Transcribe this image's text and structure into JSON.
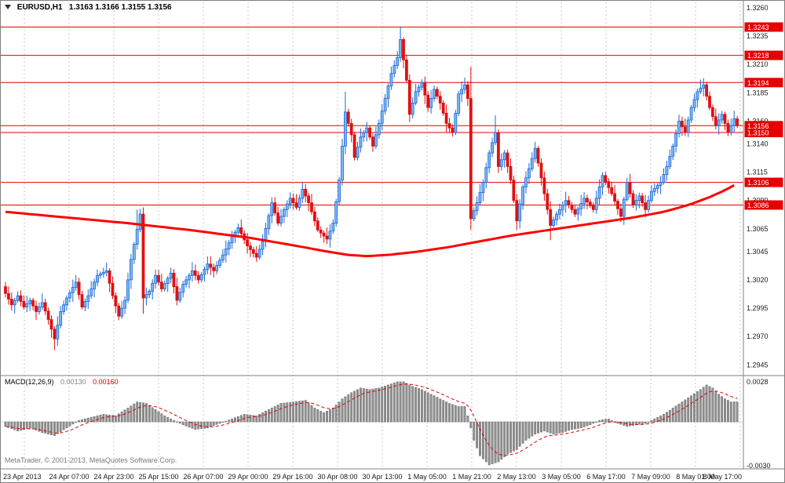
{
  "window": {
    "symbol_period": "EURUSD,H1",
    "ohlc_text": "1.3163 1.3166 1.3155 1.3156"
  },
  "watermark": "MetaTrader, © 2001-2013, MetaQuotes Software Corp.",
  "colors": {
    "background": "#ffffff",
    "border": "#808080",
    "grid": "#c9c9c9",
    "bull_stroke": "#1b66d6",
    "bull_fill": "#7db9ef",
    "bear": "#e01010",
    "ma": "#ff0000",
    "level": "#e60000",
    "tag_bg": "#e60000",
    "tag_text": "#ffffff",
    "macd_bar_fill": "#909090",
    "macd_bar_stroke": "#606060",
    "macd_signal": "#dd0000",
    "axis_text": "#1a1a1a"
  },
  "chart_data": {
    "type": "candlestick",
    "symbol": "EURUSD",
    "period": "H1",
    "last_ohlc": {
      "open": "1.3163",
      "high": "1.3166",
      "low": "1.3155",
      "close": "1.3156"
    },
    "price_axis": {
      "max": 1.3262,
      "min": 1.29425,
      "labels": [
        "1.3260",
        "1.3235",
        "1.3210",
        "1.3185",
        "1.3160",
        "1.3140",
        "1.3115",
        "1.3090",
        "1.3065",
        "1.3045",
        "1.3020",
        "1.2995",
        "1.2970",
        "1.2945"
      ]
    },
    "time_axis": {
      "labels": [
        "23 Apr 2013",
        "24 Apr 07:00",
        "24 Apr 23:00",
        "25 Apr 15:00",
        "26 Apr 07:00",
        "29 Apr 00:00",
        "29 Apr 16:00",
        "30 Apr 08:00",
        "30 Apr 13:00",
        "1 May 05:00",
        "1 May 21:00",
        "2 May 13:00",
        "3 May 05:00",
        "6 May 17:00",
        "7 May 09:00",
        "8 May 01:00",
        "8 May 17:00"
      ]
    },
    "horizontal_levels": [
      1.3243,
      1.3218,
      1.3194,
      1.315,
      1.3106,
      1.3086
    ],
    "current_bid": 1.3156,
    "moving_average": {
      "keypoints": [
        [
          0,
          1.308
        ],
        [
          20,
          1.3075
        ],
        [
          40,
          1.307
        ],
        [
          60,
          1.3064
        ],
        [
          80,
          1.3057
        ],
        [
          95,
          1.305
        ],
        [
          105,
          1.3045
        ],
        [
          112,
          1.3042
        ],
        [
          118,
          1.3041
        ],
        [
          125,
          1.3042
        ],
        [
          135,
          1.3045
        ],
        [
          145,
          1.3049
        ],
        [
          155,
          1.3054
        ],
        [
          165,
          1.3059
        ],
        [
          175,
          1.3063
        ],
        [
          185,
          1.3067
        ],
        [
          195,
          1.3071
        ],
        [
          205,
          1.3075
        ],
        [
          215,
          1.308
        ],
        [
          223,
          1.3086
        ],
        [
          230,
          1.3093
        ],
        [
          235,
          1.3099
        ],
        [
          239,
          1.3105
        ]
      ]
    },
    "candles": {
      "count": 240,
      "spacing": 3.9,
      "first_open": 1.3014,
      "wick_base": 0.0002,
      "wick_var": 0.0006,
      "close_keypoints": [
        [
          0,
          1.3008
        ],
        [
          2,
          1.2998
        ],
        [
          4,
          1.3006
        ],
        [
          6,
          1.2996
        ],
        [
          8,
          1.3002
        ],
        [
          10,
          1.2992
        ],
        [
          12,
          1.3
        ],
        [
          14,
          1.2985
        ],
        [
          16,
          1.2968
        ],
        [
          18,
          1.2992
        ],
        [
          20,
          1.3004
        ],
        [
          23,
          1.3018
        ],
        [
          25,
          1.2996
        ],
        [
          27,
          1.3006
        ],
        [
          30,
          1.3024
        ],
        [
          33,
          1.3028
        ],
        [
          35,
          1.3006
        ],
        [
          37,
          1.2988
        ],
        [
          39,
          1.3002
        ],
        [
          41,
          1.3038
        ],
        [
          44,
          1.3078
        ],
        [
          45,
          1.3004
        ],
        [
          47,
          1.301
        ],
        [
          49,
          1.3024
        ],
        [
          51,
          1.3012
        ],
        [
          54,
          1.3026
        ],
        [
          56,
          1.3002
        ],
        [
          58,
          1.3016
        ],
        [
          61,
          1.3028
        ],
        [
          63,
          1.302
        ],
        [
          66,
          1.3034
        ],
        [
          68,
          1.3028
        ],
        [
          71,
          1.3042
        ],
        [
          74,
          1.3058
        ],
        [
          76,
          1.3066
        ],
        [
          79,
          1.305
        ],
        [
          82,
          1.304
        ],
        [
          84,
          1.3054
        ],
        [
          87,
          1.3088
        ],
        [
          89,
          1.307
        ],
        [
          91,
          1.3082
        ],
        [
          93,
          1.3092
        ],
        [
          95,
          1.3084
        ],
        [
          97,
          1.31
        ],
        [
          99,
          1.3088
        ],
        [
          102,
          1.3064
        ],
        [
          105,
          1.3056
        ],
        [
          107,
          1.307
        ],
        [
          109,
          1.3108
        ],
        [
          111,
          1.3168
        ],
        [
          113,
          1.3148
        ],
        [
          114,
          1.3128
        ],
        [
          116,
          1.3146
        ],
        [
          118,
          1.3154
        ],
        [
          120,
          1.3138
        ],
        [
          122,
          1.3158
        ],
        [
          124,
          1.318
        ],
        [
          126,
          1.3202
        ],
        [
          128,
          1.3216
        ],
        [
          129,
          1.3232
        ],
        [
          131,
          1.3196
        ],
        [
          132,
          1.3166
        ],
        [
          134,
          1.3186
        ],
        [
          136,
          1.3194
        ],
        [
          138,
          1.3172
        ],
        [
          140,
          1.3188
        ],
        [
          142,
          1.3176
        ],
        [
          144,
          1.3158
        ],
        [
          146,
          1.315
        ],
        [
          148,
          1.3184
        ],
        [
          150,
          1.3192
        ],
        [
          151,
          1.318
        ],
        [
          152,
          1.3074
        ],
        [
          154,
          1.3088
        ],
        [
          156,
          1.3106
        ],
        [
          158,
          1.3132
        ],
        [
          160,
          1.315
        ],
        [
          161,
          1.312
        ],
        [
          163,
          1.3132
        ],
        [
          165,
          1.3108
        ],
        [
          167,
          1.3072
        ],
        [
          169,
          1.3102
        ],
        [
          171,
          1.3118
        ],
        [
          173,
          1.3136
        ],
        [
          175,
          1.311
        ],
        [
          178,
          1.3068
        ],
        [
          180,
          1.3078
        ],
        [
          183,
          1.309
        ],
        [
          186,
          1.3078
        ],
        [
          189,
          1.3092
        ],
        [
          192,
          1.3082
        ],
        [
          195,
          1.3112
        ],
        [
          198,
          1.3096
        ],
        [
          201,
          1.3076
        ],
        [
          203,
          1.3106
        ],
        [
          205,
          1.3086
        ],
        [
          207,
          1.3094
        ],
        [
          209,
          1.3082
        ],
        [
          211,
          1.3098
        ],
        [
          214,
          1.3106
        ],
        [
          216,
          1.312
        ],
        [
          218,
          1.3138
        ],
        [
          220,
          1.316
        ],
        [
          222,
          1.315
        ],
        [
          224,
          1.3172
        ],
        [
          226,
          1.3186
        ],
        [
          228,
          1.3192
        ],
        [
          230,
          1.3172
        ],
        [
          232,
          1.3156
        ],
        [
          234,
          1.3166
        ],
        [
          236,
          1.315
        ],
        [
          238,
          1.3162
        ],
        [
          239,
          1.3156
        ]
      ],
      "wick_overrides": [
        {
          "i": 16,
          "low": 1.2958
        },
        {
          "i": 43,
          "high": 1.3082
        },
        {
          "i": 45,
          "low": 1.299
        },
        {
          "i": 97,
          "high": 1.3106
        },
        {
          "i": 111,
          "high": 1.3186
        },
        {
          "i": 129,
          "high": 1.3243
        },
        {
          "i": 152,
          "high": 1.3208,
          "low": 1.3064
        },
        {
          "i": 160,
          "high": 1.3165
        },
        {
          "i": 167,
          "low": 1.3064
        },
        {
          "i": 178,
          "low": 1.3055
        },
        {
          "i": 228,
          "high": 1.3198
        }
      ]
    },
    "macd": {
      "label": "MACD(12,26,9)",
      "main_value": "0.00130",
      "signal_value": "0.00160",
      "scale_top_label": "0.0028",
      "scale_bottom_label": "-0.0030",
      "max": 0.0028,
      "min": -0.003,
      "hist_keypoints": [
        [
          0,
          -0.0003
        ],
        [
          4,
          -0.0006
        ],
        [
          8,
          -0.0004
        ],
        [
          12,
          -0.0007
        ],
        [
          16,
          -0.0009
        ],
        [
          20,
          -0.0004
        ],
        [
          24,
          0.0001
        ],
        [
          28,
          0.0003
        ],
        [
          32,
          0.0005
        ],
        [
          36,
          0.0004
        ],
        [
          40,
          0.0009
        ],
        [
          43,
          0.0013
        ],
        [
          46,
          0.0012
        ],
        [
          49,
          0.0008
        ],
        [
          52,
          0.0004
        ],
        [
          55,
          0.0001
        ],
        [
          58,
          -0.0002
        ],
        [
          62,
          -0.0005
        ],
        [
          66,
          -0.0004
        ],
        [
          70,
          -0.0001
        ],
        [
          74,
          0.0002
        ],
        [
          78,
          0.0005
        ],
        [
          82,
          0.0004
        ],
        [
          86,
          0.0008
        ],
        [
          90,
          0.0012
        ],
        [
          94,
          0.0013
        ],
        [
          98,
          0.0014
        ],
        [
          101,
          0.0009
        ],
        [
          104,
          0.0006
        ],
        [
          107,
          0.0009
        ],
        [
          110,
          0.0015
        ],
        [
          113,
          0.0019
        ],
        [
          116,
          0.0022
        ],
        [
          119,
          0.0021
        ],
        [
          122,
          0.0022
        ],
        [
          125,
          0.0024
        ],
        [
          128,
          0.0026
        ],
        [
          130,
          0.0026
        ],
        [
          133,
          0.0023
        ],
        [
          136,
          0.0021
        ],
        [
          139,
          0.0018
        ],
        [
          142,
          0.0015
        ],
        [
          145,
          0.0012
        ],
        [
          148,
          0.001
        ],
        [
          150,
          0.001
        ],
        [
          151,
          0.0004
        ],
        [
          153,
          -0.0012
        ],
        [
          155,
          -0.0022
        ],
        [
          158,
          -0.0028
        ],
        [
          161,
          -0.0026
        ],
        [
          164,
          -0.0021
        ],
        [
          167,
          -0.0018
        ],
        [
          170,
          -0.0012
        ],
        [
          173,
          -0.0008
        ],
        [
          176,
          -0.0006
        ],
        [
          179,
          -0.0008
        ],
        [
          182,
          -0.0007
        ],
        [
          185,
          -0.0005
        ],
        [
          188,
          -0.0004
        ],
        [
          191,
          -0.0002
        ],
        [
          194,
          0.0001
        ],
        [
          197,
          0.0002
        ],
        [
          200,
          -0.0001
        ],
        [
          203,
          -0.0003
        ],
        [
          206,
          -0.0002
        ],
        [
          209,
          -0.0001
        ],
        [
          212,
          0.0002
        ],
        [
          215,
          0.0005
        ],
        [
          218,
          0.0009
        ],
        [
          221,
          0.0013
        ],
        [
          224,
          0.0017
        ],
        [
          227,
          0.0021
        ],
        [
          229,
          0.0024
        ],
        [
          231,
          0.0022
        ],
        [
          233,
          0.0018
        ],
        [
          235,
          0.0015
        ],
        [
          237,
          0.0013
        ],
        [
          239,
          0.0013
        ]
      ]
    }
  }
}
